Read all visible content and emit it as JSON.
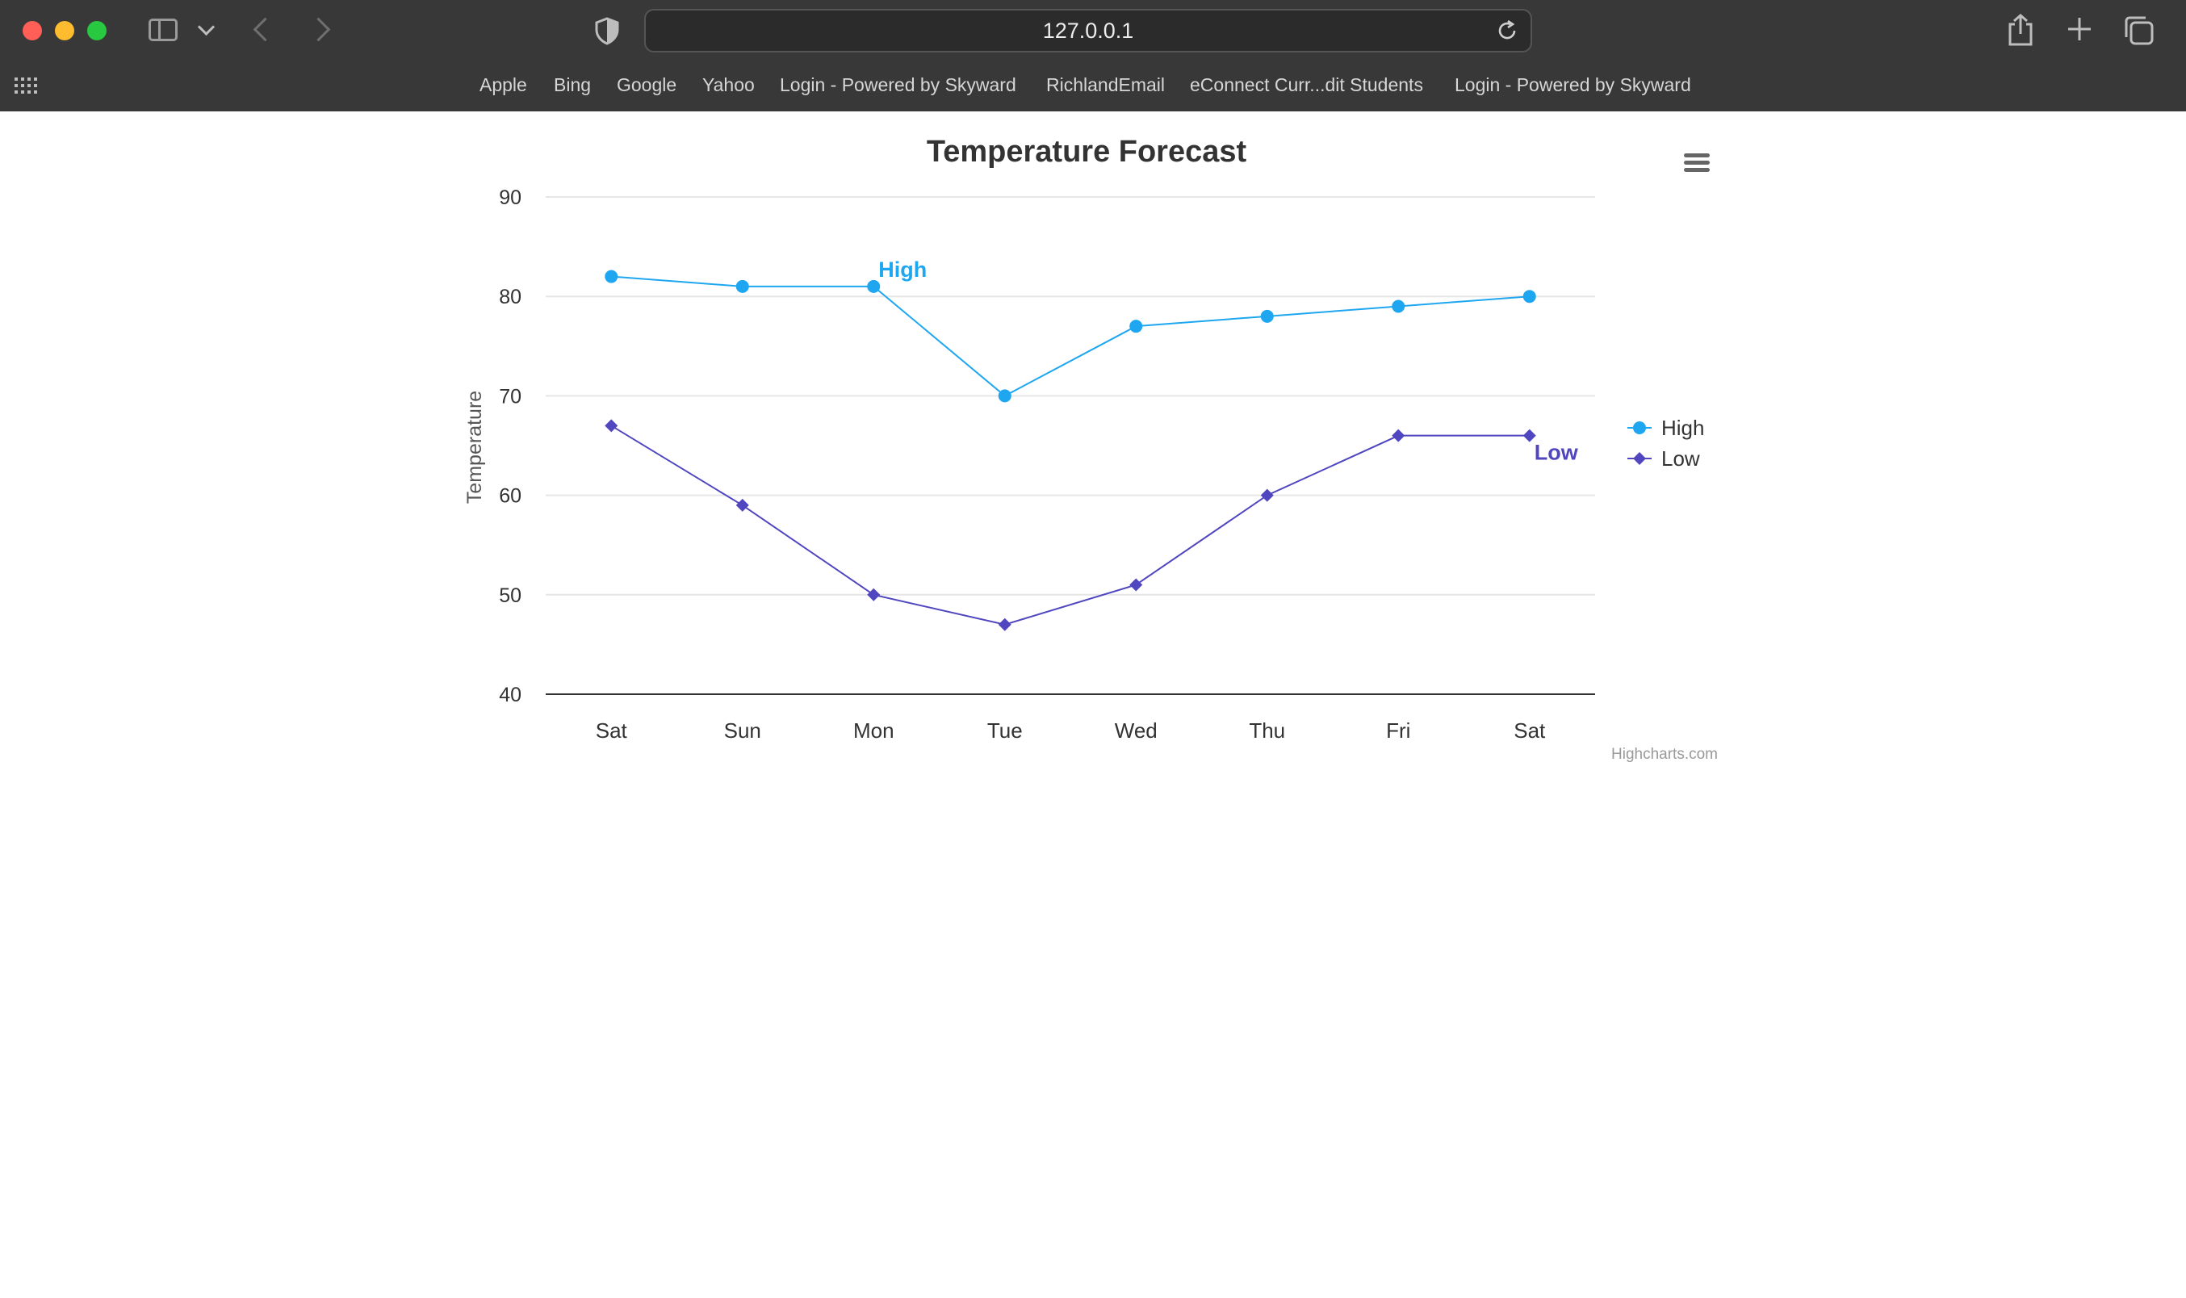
{
  "browser": {
    "address": "127.0.0.1",
    "bookmarks": [
      "Apple",
      "Bing",
      "Google",
      "Yahoo",
      "Login - Powered by Skyward",
      "RichlandEmail",
      "eConnect Curr...dit Students",
      "Login - Powered by Skyward"
    ],
    "icons": [
      "sidebar-icon",
      "chevron-down-icon",
      "back-icon",
      "forward-icon",
      "shield-icon",
      "reload-icon",
      "share-icon",
      "plus-icon",
      "tabs-icon",
      "apps-grid-icon"
    ]
  },
  "chart_data": {
    "type": "line",
    "title": "Temperature Forecast",
    "ylabel": "Temperature",
    "xlabel": "",
    "categories": [
      "Sat",
      "Sun",
      "Mon",
      "Tue",
      "Wed",
      "Thu",
      "Fri",
      "Sat"
    ],
    "ylim": [
      40,
      90
    ],
    "yticks": [
      40,
      50,
      60,
      70,
      80,
      90
    ],
    "grid": true,
    "legend": "right",
    "series": [
      {
        "name": "High",
        "color": "#1ea7f0",
        "marker": "circle",
        "values": [
          82,
          81,
          81,
          70,
          77,
          78,
          79,
          80
        ]
      },
      {
        "name": "Low",
        "color": "#5046c0",
        "marker": "diamond",
        "values": [
          67,
          59,
          50,
          47,
          51,
          60,
          66,
          66
        ]
      }
    ],
    "annotations": [
      {
        "series": "High",
        "text": "High",
        "category_index": 2
      },
      {
        "series": "Low",
        "text": "Low",
        "category_index": 7
      }
    ],
    "credits": "Highcharts.com",
    "menu_icon": "hamburger-menu-icon"
  }
}
